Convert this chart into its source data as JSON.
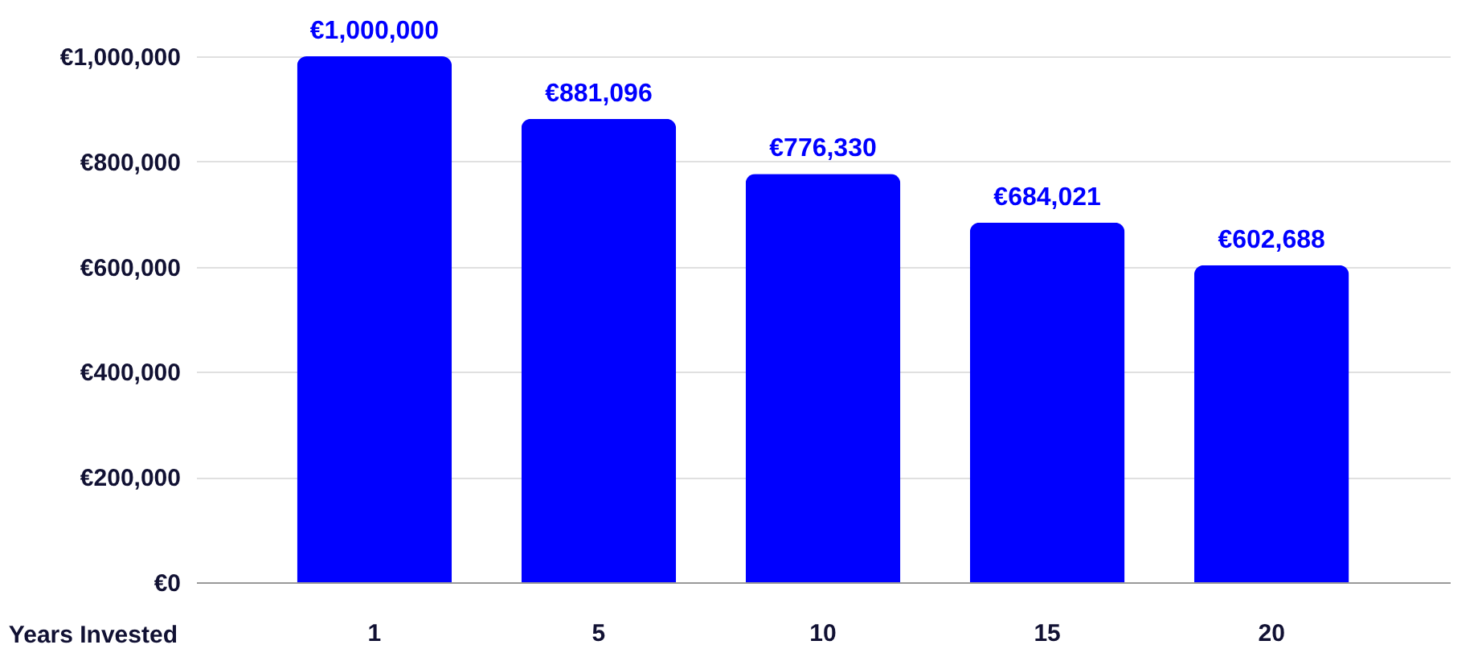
{
  "chart_data": {
    "type": "bar",
    "xlabel": "Years Invested",
    "categories": [
      "1",
      "5",
      "10",
      "15",
      "20"
    ],
    "values": [
      1000000,
      881096,
      776330,
      684021,
      602688
    ],
    "value_labels": [
      "€1,000,000",
      "€881,096",
      "€776,330",
      "€684,021",
      "€602,688"
    ],
    "color": "#0000ff",
    "ylim": [
      0,
      1000000
    ],
    "yticks": [
      {
        "value": 0,
        "label": "€0"
      },
      {
        "value": 200000,
        "label": "€200,000"
      },
      {
        "value": 400000,
        "label": "€400,000"
      },
      {
        "value": 600000,
        "label": "€600,000"
      },
      {
        "value": 800000,
        "label": "€800,000"
      },
      {
        "value": 1000000,
        "label": "€1,000,000"
      }
    ],
    "grid": "y"
  }
}
